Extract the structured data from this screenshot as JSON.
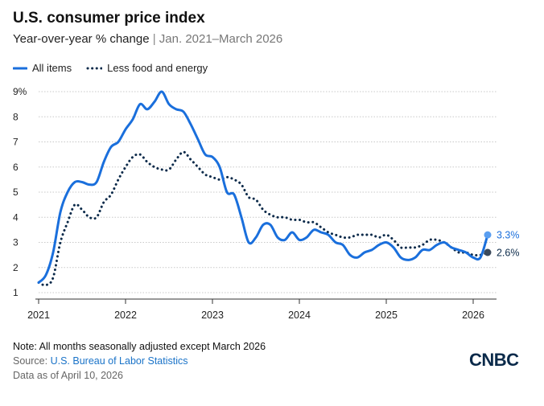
{
  "header": {
    "title": "U.S. consumer price index",
    "subtitle_main": "Year-over-year % change",
    "subtitle_sep": "|",
    "subtitle_dates": "Jan. 2021–March 2026"
  },
  "colors": {
    "all_items": "#1a6fdc",
    "core": "#0b2a4a",
    "grid": "#c8c8c8",
    "axis": "#333333",
    "label_all": "#1a6fdc",
    "label_core": "#0b2a4a"
  },
  "chart_data": {
    "type": "line",
    "title": "U.S. consumer price index",
    "xlabel": "",
    "ylabel": "Year-over-year % change",
    "ylim": [
      1,
      9
    ],
    "xlim": [
      2021.0,
      2026.25
    ],
    "y_ticks": [
      {
        "value": 1,
        "label": "1"
      },
      {
        "value": 2,
        "label": "2"
      },
      {
        "value": 3,
        "label": "3"
      },
      {
        "value": 4,
        "label": "4"
      },
      {
        "value": 5,
        "label": "5"
      },
      {
        "value": 6,
        "label": "6"
      },
      {
        "value": 7,
        "label": "7"
      },
      {
        "value": 8,
        "label": "8"
      },
      {
        "value": 9,
        "label": "9%"
      }
    ],
    "x_ticks": [
      {
        "value": 2021,
        "label": "2021"
      },
      {
        "value": 2022,
        "label": "2022"
      },
      {
        "value": 2023,
        "label": "2023"
      },
      {
        "value": 2024,
        "label": "2024"
      },
      {
        "value": 2025,
        "label": "2025"
      },
      {
        "value": 2026,
        "label": "2026"
      }
    ],
    "x_start": 2021.0,
    "x_step": 0.08333,
    "series": [
      {
        "name": "All items",
        "style": "solid",
        "values": [
          1.4,
          1.7,
          2.6,
          4.2,
          5.0,
          5.4,
          5.4,
          5.3,
          5.4,
          6.2,
          6.8,
          7.0,
          7.5,
          7.9,
          8.5,
          8.3,
          8.6,
          9.0,
          8.5,
          8.3,
          8.2,
          7.7,
          7.1,
          6.5,
          6.4,
          6.0,
          5.0,
          4.9,
          4.0,
          3.0,
          3.2,
          3.7,
          3.7,
          3.2,
          3.1,
          3.4,
          3.1,
          3.2,
          3.5,
          3.4,
          3.3,
          3.0,
          2.9,
          2.5,
          2.4,
          2.6,
          2.7,
          2.9,
          3.0,
          2.8,
          2.4,
          2.3,
          2.4,
          2.7,
          2.7,
          2.9,
          3.0,
          2.8,
          2.7,
          2.6,
          2.4,
          2.4,
          3.3
        ],
        "end_label": "3.3%"
      },
      {
        "name": "Less food and energy",
        "style": "dotted",
        "values": [
          1.4,
          1.3,
          1.6,
          3.0,
          3.8,
          4.5,
          4.3,
          4.0,
          4.0,
          4.6,
          4.9,
          5.5,
          6.0,
          6.4,
          6.5,
          6.2,
          6.0,
          5.9,
          5.9,
          6.3,
          6.6,
          6.3,
          6.0,
          5.7,
          5.6,
          5.5,
          5.6,
          5.5,
          5.3,
          4.8,
          4.7,
          4.3,
          4.1,
          4.0,
          4.0,
          3.9,
          3.9,
          3.8,
          3.8,
          3.6,
          3.4,
          3.3,
          3.2,
          3.2,
          3.3,
          3.3,
          3.3,
          3.2,
          3.3,
          3.1,
          2.8,
          2.8,
          2.8,
          2.9,
          3.1,
          3.1,
          3.0,
          2.8,
          2.6,
          2.6,
          2.5,
          2.5,
          2.6
        ],
        "end_label": "2.6%"
      }
    ]
  },
  "notes": {
    "note": "Note: All months seasonally adjusted except March 2026",
    "source_prefix": "Source:",
    "source_link": "U.S. Bureau of Labor Statistics",
    "as_of": "Data as of April 10, 2026"
  },
  "logo": {
    "text": "CNBC"
  }
}
